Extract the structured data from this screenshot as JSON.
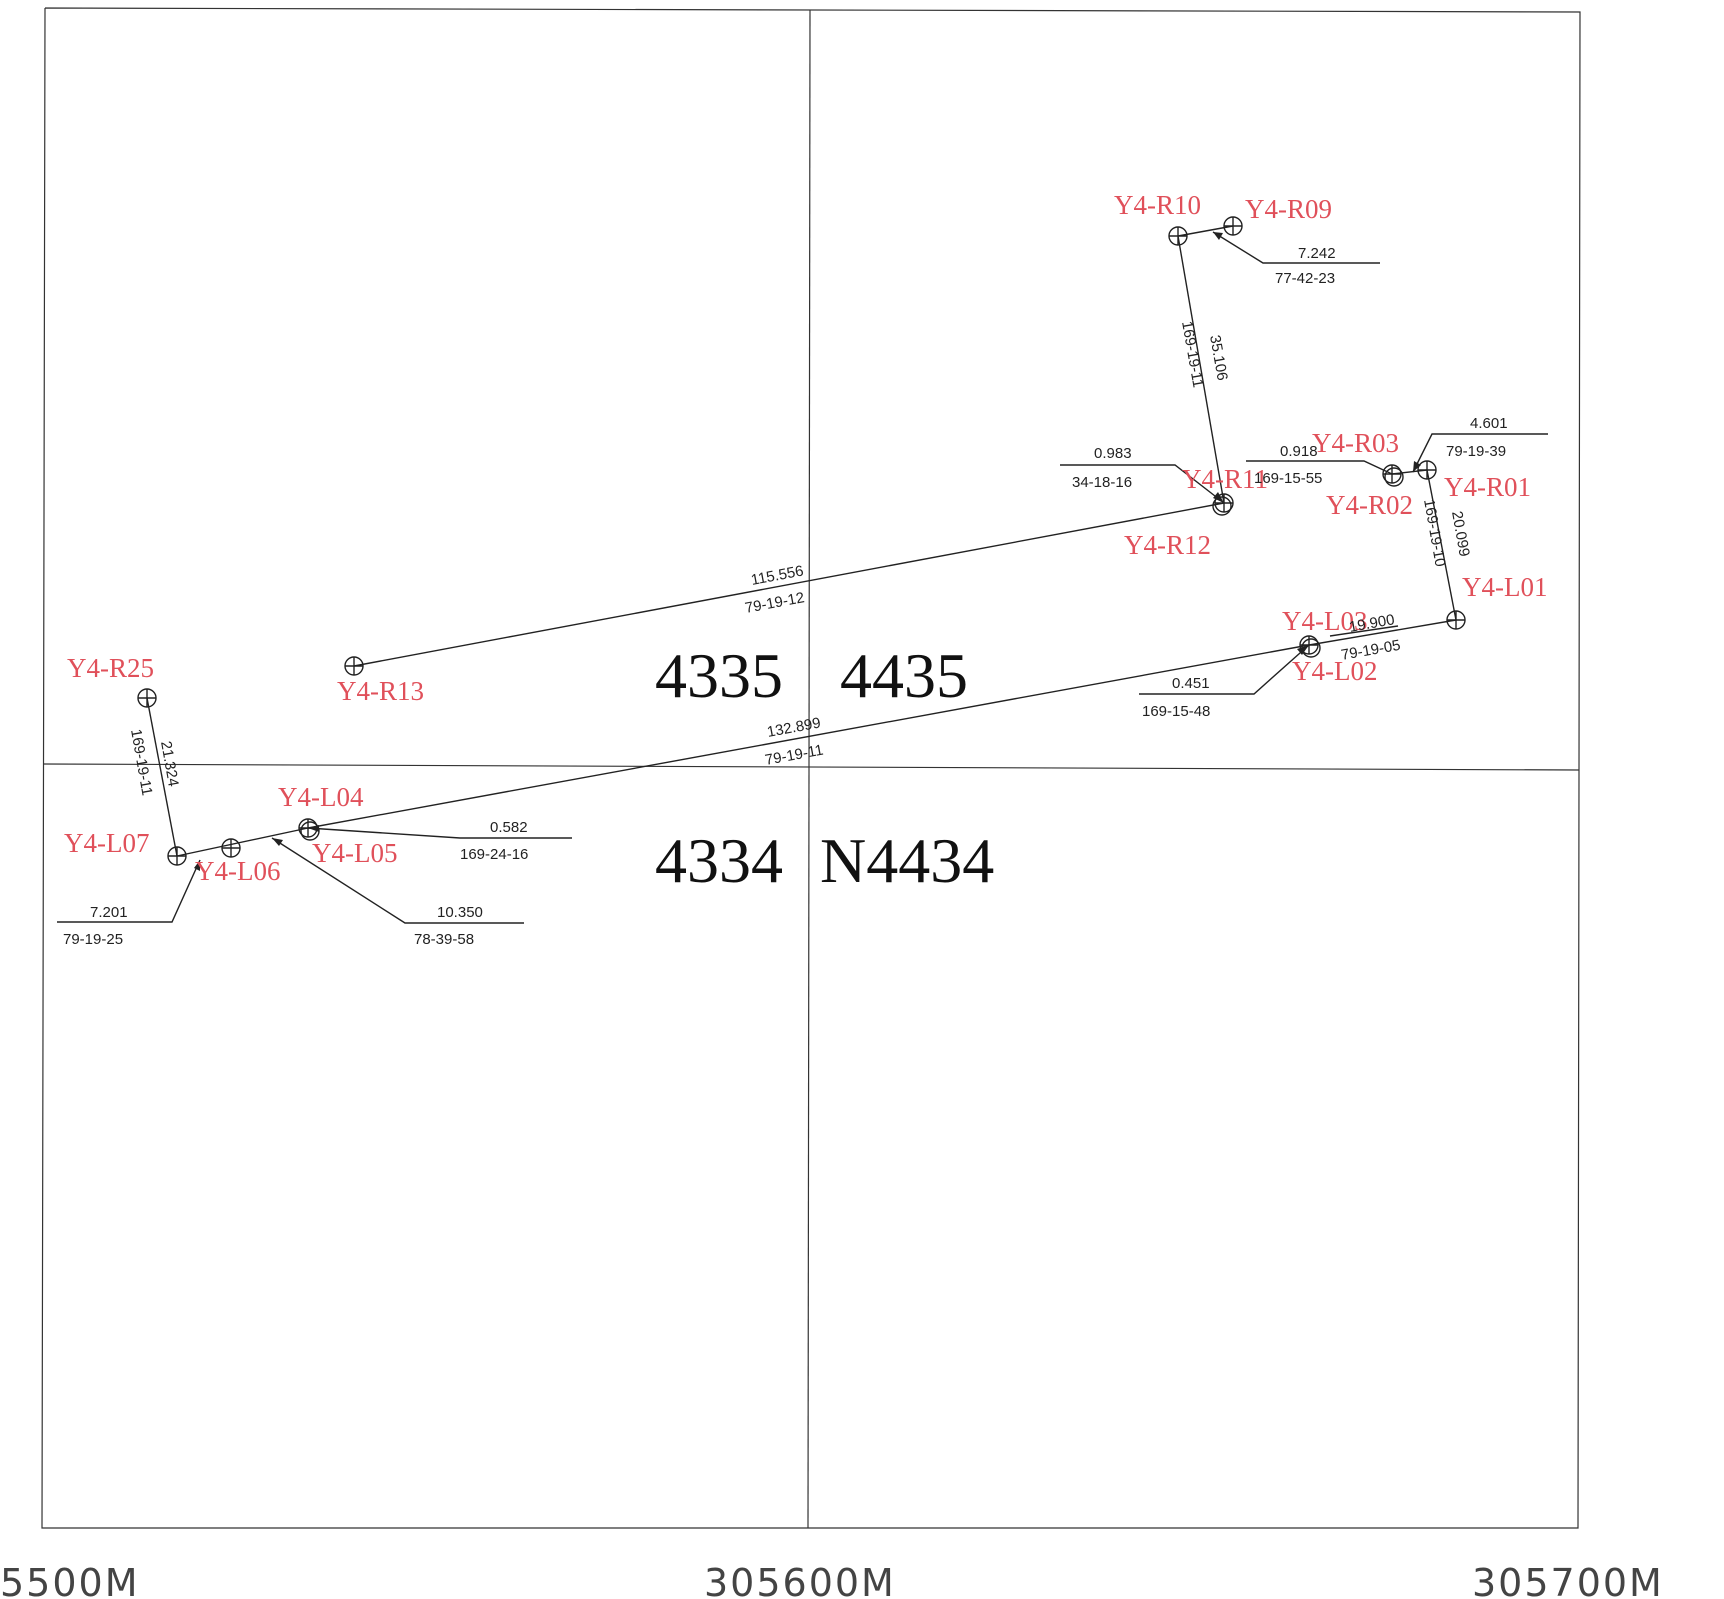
{
  "sheet_numbers": {
    "top_left": "4335",
    "top_right": "4435",
    "bottom_left": "4334",
    "bottom_right": "N4434"
  },
  "easting_labels": [
    "5500M",
    "305600M",
    "305700M"
  ],
  "points": {
    "R10": "Y4-R10",
    "R09": "Y4-R09",
    "R11": "Y4-R11",
    "R12": "Y4-R12",
    "R03": "Y4-R03",
    "R02": "Y4-R02",
    "R01": "Y4-R01",
    "L01": "Y4-L01",
    "L03": "Y4-L03",
    "L02": "Y4-L02",
    "R13": "Y4-R13",
    "R25": "Y4-R25",
    "L04": "Y4-L04",
    "L05": "Y4-L05",
    "L07": "Y4-L07",
    "L06": "Y4-L06"
  },
  "dimensions": {
    "r09_dist": "7.242",
    "r09_brg": "77-42-23",
    "r10_r11_dist": "35.106",
    "r10_r11_brg": "169-19-11",
    "r11_dist": "0.983",
    "r11_brg": "34-18-16",
    "r03_dist": "0.918",
    "r03_brg": "169-15-55",
    "r01_dist": "4.601",
    "r01_brg": "79-19-39",
    "r01_l01_dist": "20.099",
    "r01_l01_brg": "169-19-10",
    "r12_r13_dist": "115.556",
    "r12_r13_brg": "79-19-12",
    "l01_l03_dist": "19.900",
    "l01_l03_brg": "79-19-05",
    "l02_dist": "0.451",
    "l02_brg": "169-15-48",
    "l03_l04_dist": "132.899",
    "l03_l04_brg": "79-19-11",
    "r25_l07_dist": "21.324",
    "r25_l07_brg": "169-19-11",
    "l05_dist": "0.582",
    "l05_brg": "169-24-16",
    "l06_l04_dist": "10.350",
    "l06_l04_brg": "78-39-58",
    "l07_dist": "7.201",
    "l07_brg": "79-19-25"
  },
  "colors": {
    "point_label": "#e0505a",
    "linework": "#222222"
  }
}
